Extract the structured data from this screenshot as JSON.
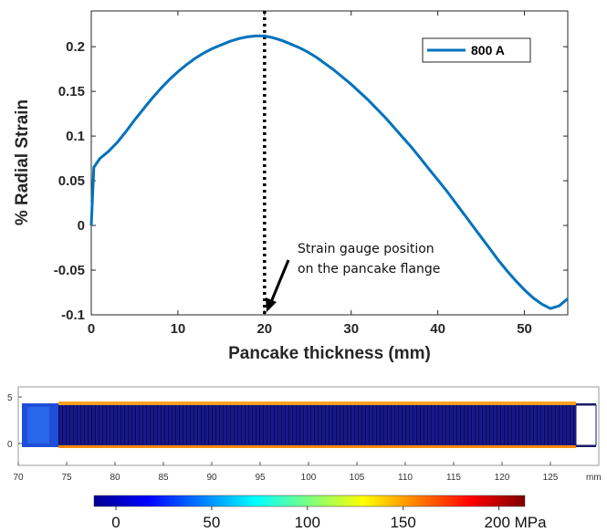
{
  "chart_data": [
    {
      "type": "line",
      "xlabel": "Pancake thickness (mm)",
      "ylabel": "% Radial Strain",
      "xlim": [
        0,
        55
      ],
      "ylim": [
        -0.1,
        0.24
      ],
      "xticks": [
        "0",
        "10",
        "20",
        "30",
        "40",
        "50"
      ],
      "yticks": [
        "0.2",
        "0.15",
        "0.1",
        "0.05",
        "0",
        "-0.05",
        "-0.1"
      ],
      "grid": false,
      "legend_position": "top-right",
      "series": [
        {
          "name": "800 A",
          "color": "#0072BD",
          "x": [
            0,
            0.3,
            1,
            2,
            3,
            4,
            5,
            6,
            7,
            8,
            9,
            10,
            11,
            12,
            13,
            14,
            15,
            16,
            17,
            18,
            19,
            20,
            21,
            22,
            23,
            24,
            25,
            26,
            27,
            28,
            29,
            30,
            31,
            32,
            33,
            34,
            35,
            36,
            37,
            38,
            39,
            40,
            41,
            42,
            43,
            44,
            45,
            46,
            47,
            48,
            49,
            50,
            51,
            52,
            53,
            54,
            55
          ],
          "y": [
            0,
            0.065,
            0.075,
            0.083,
            0.093,
            0.105,
            0.118,
            0.13,
            0.142,
            0.153,
            0.163,
            0.172,
            0.18,
            0.187,
            0.193,
            0.198,
            0.202,
            0.206,
            0.209,
            0.211,
            0.212,
            0.212,
            0.21,
            0.207,
            0.203,
            0.199,
            0.194,
            0.188,
            0.181,
            0.174,
            0.166,
            0.158,
            0.149,
            0.14,
            0.13,
            0.12,
            0.109,
            0.098,
            0.087,
            0.075,
            0.063,
            0.051,
            0.039,
            0.026,
            0.013,
            0.0,
            -0.013,
            -0.026,
            -0.039,
            -0.051,
            -0.062,
            -0.072,
            -0.081,
            -0.088,
            -0.093,
            -0.09,
            -0.082
          ]
        }
      ],
      "marker_line_x": 20,
      "annotation": [
        "Strain gauge position",
        "on the pancake flange"
      ]
    },
    {
      "type": "heatmap",
      "xticks": [
        "70",
        "75",
        "80",
        "85",
        "90",
        "95",
        "100",
        "105",
        "110",
        "115",
        "120",
        "125"
      ],
      "xunit": "mm",
      "yticks": [
        "5",
        "0"
      ],
      "xlim": [
        70,
        130
      ],
      "colorbar": {
        "ticks": [
          "0",
          "50",
          "100",
          "150",
          "200 MPa"
        ],
        "range": [
          0,
          225
        ],
        "colors": [
          "#00008f",
          "#0000ff",
          "#007fff",
          "#00ffff",
          "#7fff7f",
          "#ffff00",
          "#ff7f00",
          "#ff0000",
          "#7f0000"
        ]
      }
    }
  ]
}
